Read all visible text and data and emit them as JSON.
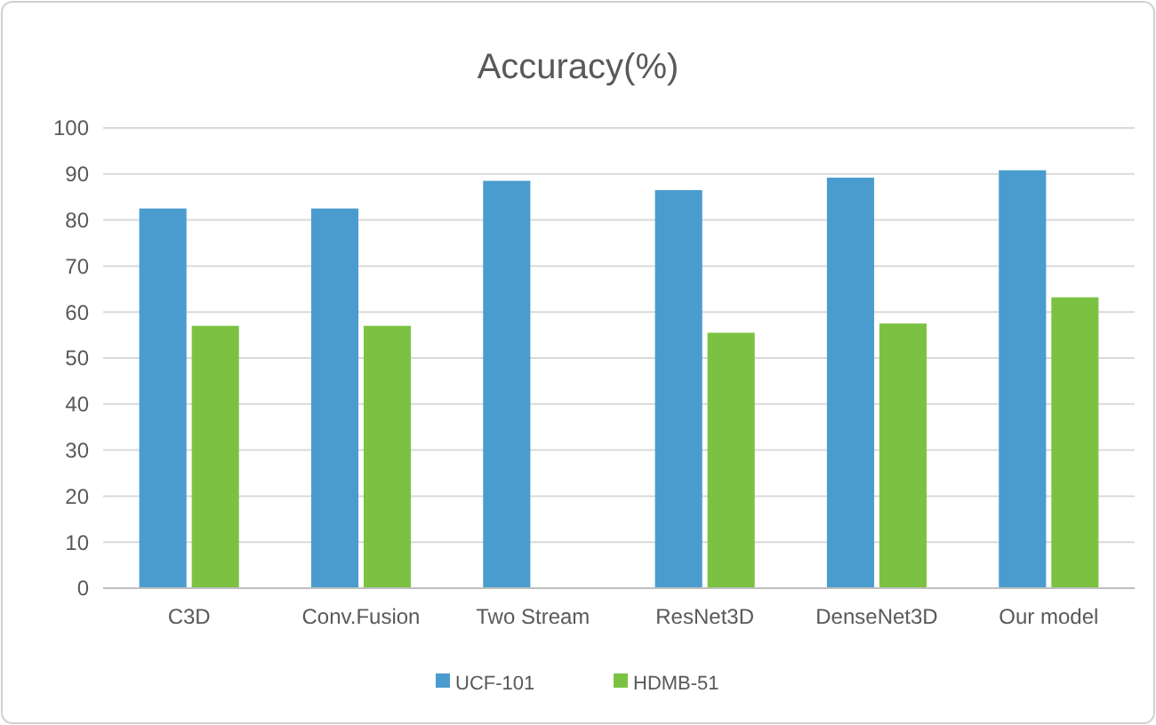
{
  "chart_data": {
    "type": "bar",
    "title": "Accuracy(%)",
    "categories": [
      "C3D",
      "Conv.Fusion",
      "Two Stream",
      "ResNet3D",
      "DenseNet3D",
      "Our model"
    ],
    "series": [
      {
        "name": "UCF-101",
        "color": "#4a9ccf",
        "values": [
          82.5,
          82.5,
          88.5,
          86.5,
          89.2,
          90.8
        ]
      },
      {
        "name": "HDMB-51",
        "color": "#7cc242",
        "values": [
          57,
          57,
          null,
          55.5,
          57.5,
          63.2
        ]
      }
    ],
    "ylim": [
      0,
      100
    ],
    "yticks": [
      0,
      10,
      20,
      30,
      40,
      50,
      60,
      70,
      80,
      90,
      100
    ],
    "grid": "y",
    "legend": "bottom"
  }
}
